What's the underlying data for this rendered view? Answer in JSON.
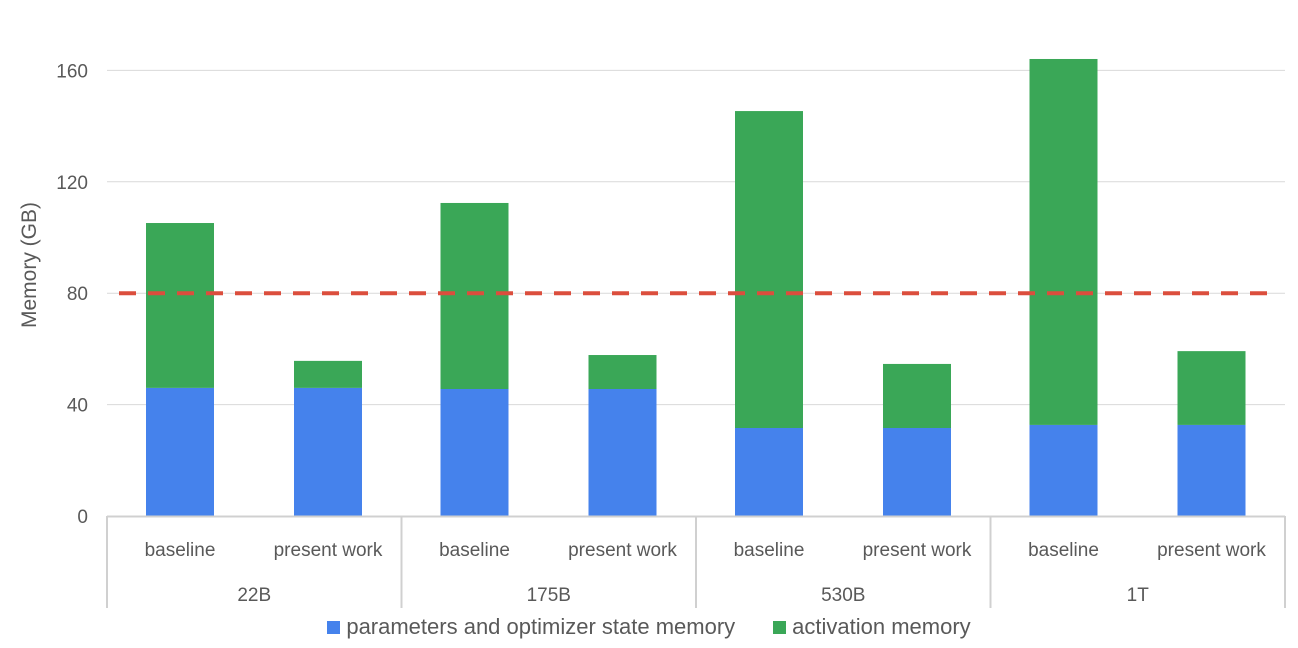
{
  "chart_data": {
    "type": "bar",
    "stacked": true,
    "title": "",
    "xlabel": "",
    "ylabel": "Memory (GB)",
    "ylim": [
      0,
      170
    ],
    "yticks": [
      0,
      40,
      80,
      120,
      160
    ],
    "grid": true,
    "legend_position": "bottom",
    "groups": [
      "22B",
      "175B",
      "530B",
      "1T"
    ],
    "categories": [
      "baseline",
      "present work",
      "baseline",
      "present work",
      "baseline",
      "present work",
      "baseline",
      "present work"
    ],
    "series": [
      {
        "name": "parameters and optimizer state memory",
        "color": "#4582EC",
        "values": [
          46.0,
          46.0,
          45.6,
          45.6,
          31.6,
          31.6,
          32.7,
          32.7
        ]
      },
      {
        "name": "activation memory",
        "color": "#3AA757",
        "values": [
          59.2,
          9.7,
          66.8,
          12.2,
          113.8,
          23.0,
          131.4,
          26.5
        ]
      }
    ],
    "reference_line": {
      "value": 80,
      "style": "dashed",
      "color": "#DB4E3D"
    }
  },
  "legend": {
    "items": [
      {
        "label": "parameters and optimizer state memory",
        "color": "#4582EC"
      },
      {
        "label": "activation memory",
        "color": "#3AA757"
      }
    ]
  }
}
